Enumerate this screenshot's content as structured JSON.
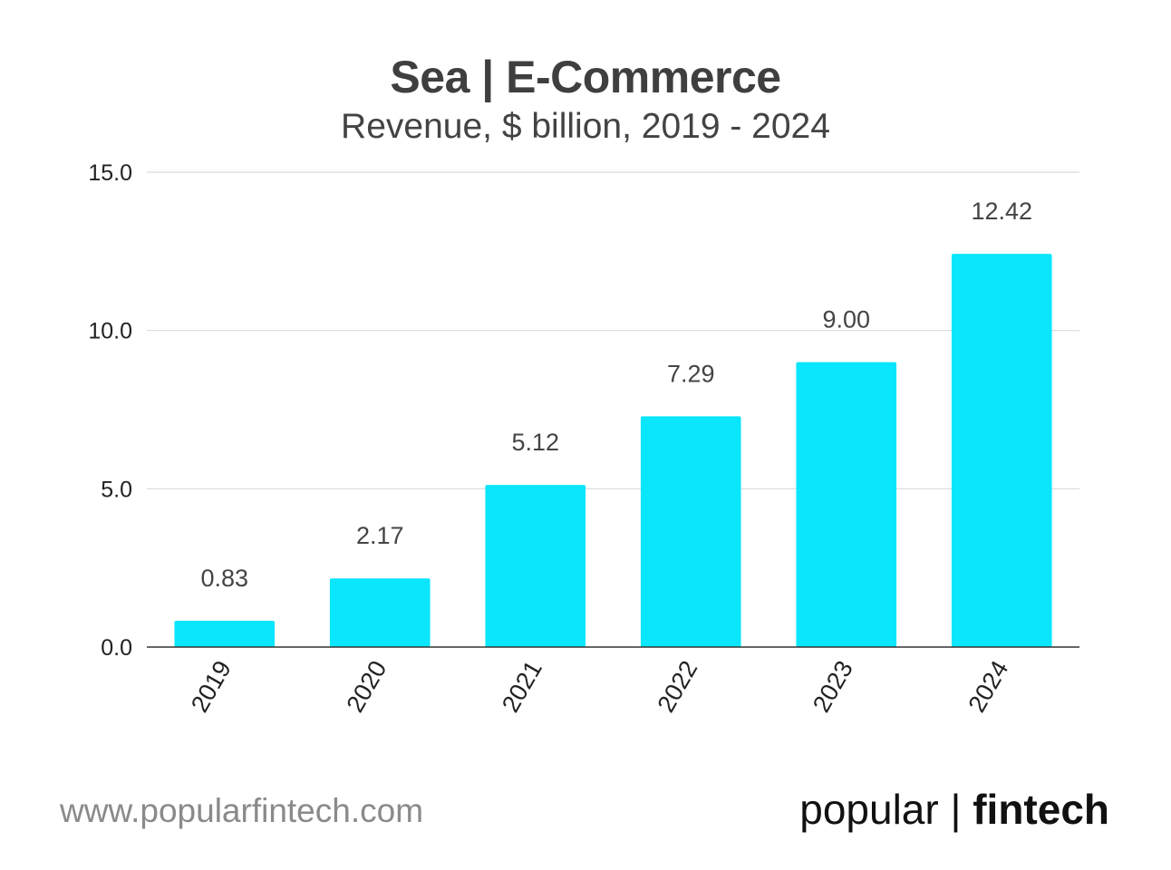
{
  "chart_data": {
    "type": "bar",
    "title": "Sea | E-Commerce",
    "subtitle": "Revenue, $ billion, 2019 - 2024",
    "categories": [
      "2019",
      "2020",
      "2021",
      "2022",
      "2023",
      "2024"
    ],
    "values": [
      0.83,
      2.17,
      5.12,
      7.29,
      9.0,
      12.42
    ],
    "data_labels": [
      "0.83",
      "2.17",
      "5.12",
      "7.29",
      "9.00",
      "12.42"
    ],
    "ylim": [
      0,
      15
    ],
    "yticks": [
      0,
      5,
      10,
      15
    ],
    "ytick_labels": [
      "0.0",
      "5.0",
      "10.0",
      "15.0"
    ],
    "xlabel": "",
    "ylabel": "",
    "grid": true,
    "bar_color": "#0ae6fc"
  },
  "footer": {
    "website": "www.popularfintech.com",
    "brand_part1": "popular",
    "brand_sep": "|",
    "brand_part2": "fintech"
  }
}
